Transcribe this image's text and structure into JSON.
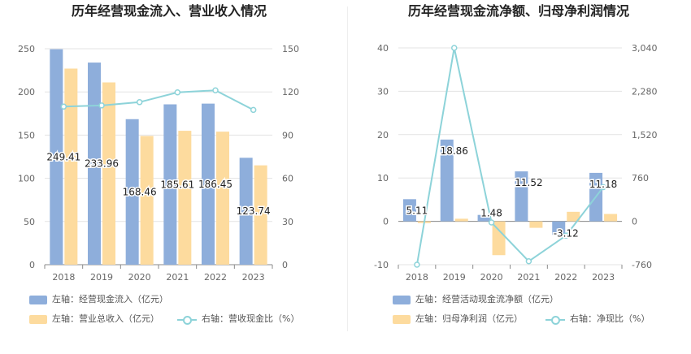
{
  "chart_data": [
    {
      "type": "bar+line",
      "title": "历年经营现金流入、营业收入情况",
      "categories": [
        "2018",
        "2019",
        "2020",
        "2021",
        "2022",
        "2023"
      ],
      "left_axis": {
        "ticks": [
          "0",
          "50",
          "100",
          "150",
          "200",
          "250"
        ],
        "ylim": [
          0,
          250
        ]
      },
      "right_axis": {
        "ticks": [
          "0",
          "30",
          "60",
          "90",
          "120",
          "150"
        ],
        "ylim": [
          0,
          150
        ]
      },
      "series": [
        {
          "name": "左轴：经营现金流入（亿元）",
          "kind": "bar",
          "axis": "left",
          "color": "#8eaedb",
          "values": [
            249.41,
            233.96,
            168.46,
            185.61,
            186.45,
            123.74
          ],
          "labels": [
            "249.41",
            "233.96",
            "168.46",
            "185.61",
            "186.45",
            "123.74"
          ]
        },
        {
          "name": "左轴：营业总收入（亿元）",
          "kind": "bar",
          "axis": "left",
          "color": "#fddb9e",
          "values": [
            227,
            211,
            149,
            155,
            154,
            115
          ]
        },
        {
          "name": "右轴：营收现金比（%）",
          "kind": "line",
          "axis": "right",
          "color": "#8dd3d9",
          "values": [
            109.8,
            110.6,
            112.9,
            119.7,
            121.1,
            107.5
          ]
        }
      ],
      "grid": true,
      "legend": "bottom"
    },
    {
      "type": "bar+line",
      "title": "历年经营现金流净额、归母净利润情况",
      "categories": [
        "2018",
        "2019",
        "2020",
        "2021",
        "2022",
        "2023"
      ],
      "left_axis": {
        "ticks": [
          "-10",
          "0",
          "10",
          "20",
          "30",
          "40"
        ],
        "ylim": [
          -10,
          40
        ]
      },
      "right_axis": {
        "ticks": [
          "-760",
          "0",
          "760",
          "1,520",
          "2,280",
          "3,040"
        ],
        "ylim": [
          -760,
          3040
        ]
      },
      "series": [
        {
          "name": "左轴：经营活动现金流净额（亿元）",
          "kind": "bar",
          "axis": "left",
          "color": "#8eaedb",
          "values": [
            5.11,
            18.86,
            1.48,
            11.52,
            -3.12,
            11.18
          ],
          "labels": [
            "5.11",
            "18.86",
            "1.48",
            "11.52",
            "-3.12",
            "11.18"
          ]
        },
        {
          "name": "左轴：归母净利润（亿元）",
          "kind": "bar",
          "axis": "left",
          "color": "#fddb9e",
          "values": [
            -0.4,
            0.6,
            -7.8,
            -1.5,
            2.2,
            1.7
          ]
        },
        {
          "name": "右轴：净现比（%）",
          "kind": "line",
          "axis": "right",
          "color": "#8dd3d9",
          "values": [
            -760,
            3040,
            -20,
            -700,
            -250,
            600
          ]
        }
      ],
      "grid": true,
      "legend": "bottom"
    }
  ]
}
